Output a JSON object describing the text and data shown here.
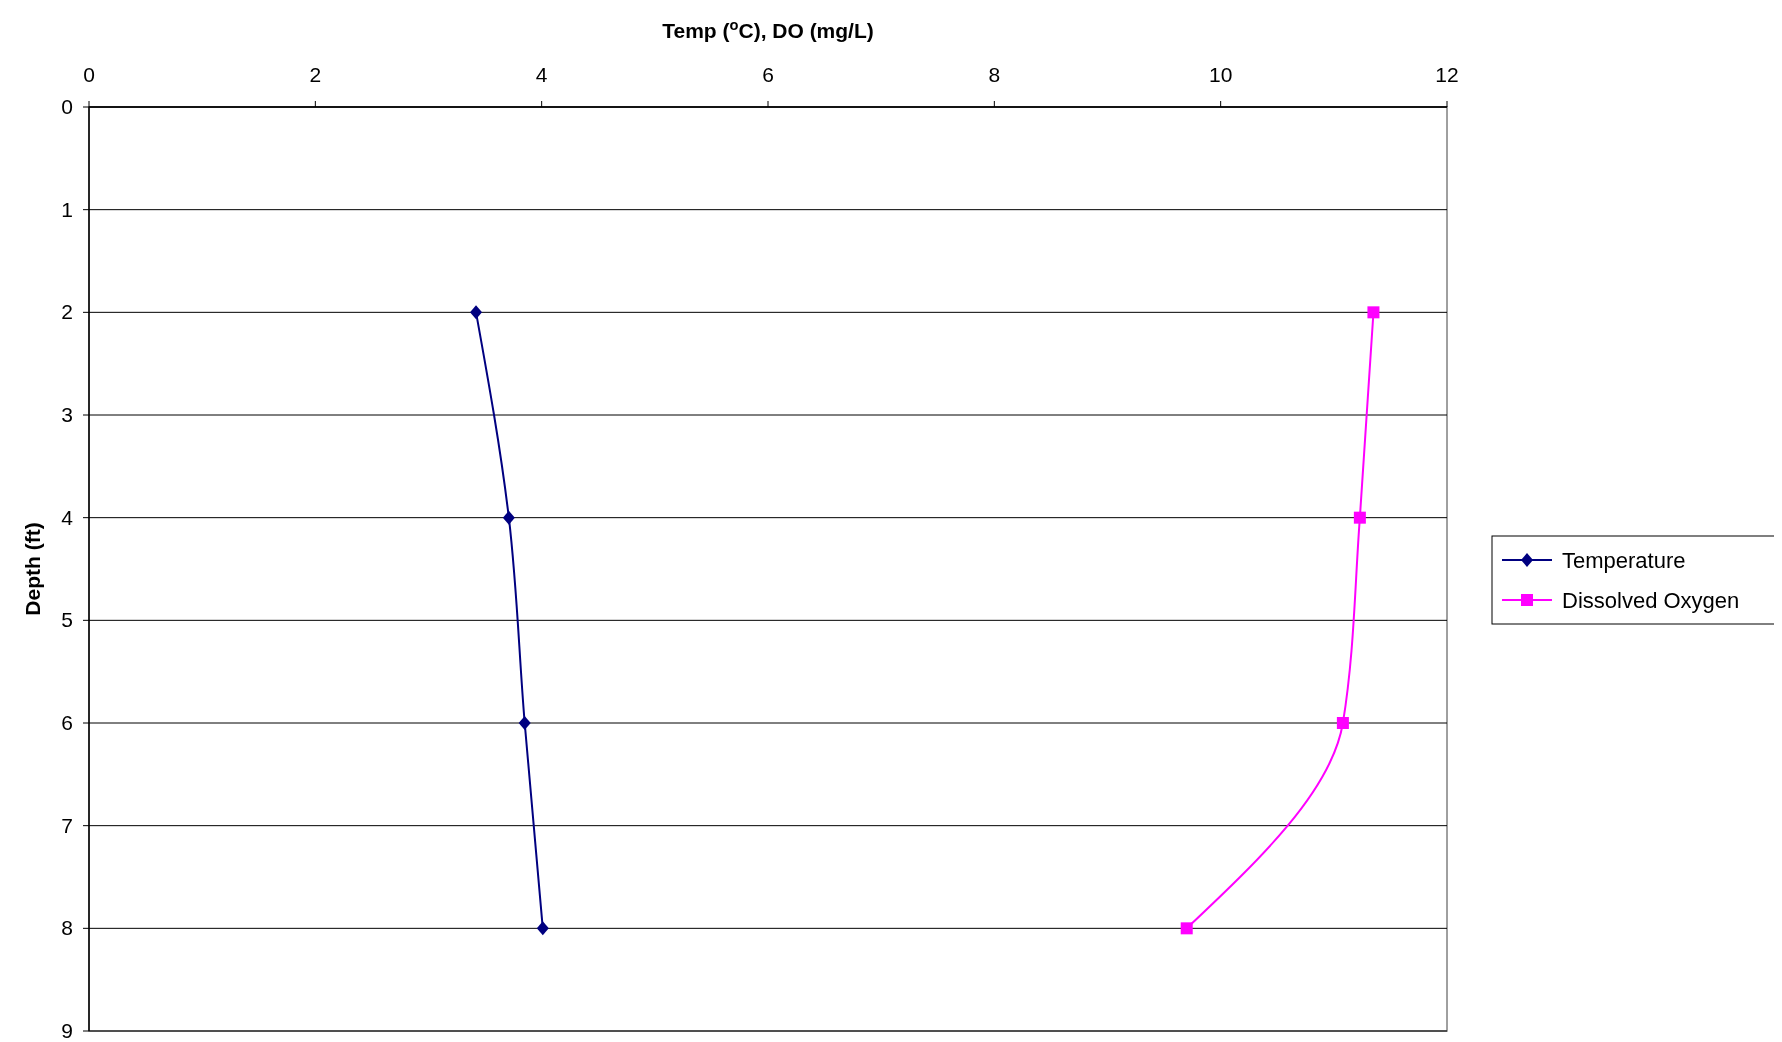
{
  "chart_data": {
    "type": "line",
    "xlabel": "Temp ($^{o}$C), DO (mg/L)",
    "ylabel": "Depth (ft)",
    "xlim": [
      0,
      12
    ],
    "xticks": [
      0,
      2,
      4,
      6,
      8,
      10,
      12
    ],
    "ylim": [
      9,
      0
    ],
    "yticks": [
      0,
      1,
      2,
      3,
      4,
      5,
      6,
      7,
      8,
      9
    ],
    "grid": "y",
    "legend": "right",
    "line_style": "solid",
    "series": [
      {
        "name": "Temperature",
        "color": "#000080",
        "marker": "diamond",
        "x": [
          3.42,
          3.71,
          3.85,
          4.01
        ],
        "values": [
          2,
          4,
          6,
          8
        ]
      },
      {
        "name": "Dissolved Oxygen",
        "color": "#ff00ff",
        "marker": "square",
        "x": [
          11.35,
          11.23,
          11.08,
          9.7
        ],
        "values": [
          2,
          4,
          6,
          8
        ]
      }
    ]
  }
}
